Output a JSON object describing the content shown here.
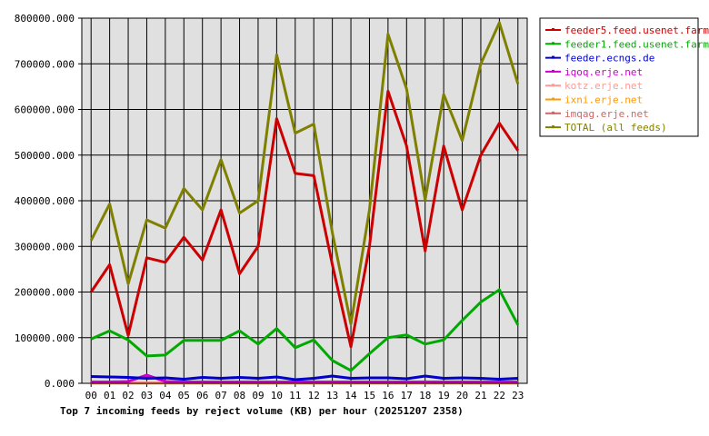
{
  "chart_data": {
    "type": "line",
    "title": "Top 7 incoming feeds by reject volume (KB) per hour (20251207 2358)",
    "xlabel": "",
    "ylabel": "",
    "categories": [
      "00",
      "01",
      "02",
      "03",
      "04",
      "05",
      "06",
      "07",
      "08",
      "09",
      "10",
      "11",
      "12",
      "13",
      "14",
      "15",
      "16",
      "17",
      "18",
      "19",
      "20",
      "21",
      "22",
      "23"
    ],
    "ylim": [
      0,
      800000
    ],
    "yticks": [
      0,
      100000,
      200000,
      300000,
      400000,
      500000,
      600000,
      700000,
      800000
    ],
    "ytick_labels": [
      "0.000",
      "100000.000",
      "200000.000",
      "300000.000",
      "400000.000",
      "500000.000",
      "600000.000",
      "700000.000",
      "800000.000"
    ],
    "grid": true,
    "legend_position": "right",
    "series": [
      {
        "name": "feeder5.feed.usenet.farm",
        "color": "#cc0000",
        "values": [
          200000,
          260000,
          105000,
          275000,
          265000,
          320000,
          270000,
          380000,
          240000,
          300000,
          580000,
          460000,
          455000,
          260000,
          80000,
          300000,
          640000,
          520000,
          290000,
          520000,
          380000,
          500000,
          570000,
          510000
        ]
      },
      {
        "name": "feeder1.feed.usenet.farm",
        "color": "#00aa00",
        "values": [
          97000,
          115000,
          95000,
          60000,
          62000,
          94000,
          94000,
          94000,
          115000,
          86000,
          120000,
          78000,
          95000,
          50000,
          28000,
          65000,
          100000,
          106000,
          86000,
          95000,
          138000,
          178000,
          205000,
          128000
        ]
      },
      {
        "name": "feeder.ecngs.de",
        "color": "#0000cc",
        "values": [
          15000,
          14000,
          13000,
          11000,
          12000,
          9000,
          13000,
          11000,
          13000,
          11000,
          14000,
          8000,
          11000,
          16000,
          11000,
          12000,
          12000,
          10000,
          16000,
          11000,
          12000,
          11000,
          9000,
          11000
        ]
      },
      {
        "name": "iqoq.erje.net",
        "color": "#cc00cc",
        "values": [
          3000,
          3000,
          4000,
          18000,
          4000,
          3000,
          3000,
          3000,
          3000,
          3000,
          3000,
          3000,
          3000,
          3000,
          3000,
          3000,
          3000,
          3000,
          3000,
          3000,
          3000,
          3000,
          3000,
          3000
        ]
      },
      {
        "name": "kotz.erje.net",
        "color": "#ff9999",
        "values": [
          1500,
          1500,
          1500,
          1500,
          1500,
          1500,
          1500,
          1500,
          1500,
          1500,
          1500,
          1500,
          1500,
          1500,
          1500,
          1500,
          1500,
          1500,
          1500,
          1500,
          1500,
          1500,
          1500,
          1500
        ]
      },
      {
        "name": "ixni.erje.net",
        "color": "#ff9900",
        "values": [
          1000,
          1000,
          1000,
          1000,
          1000,
          1000,
          1000,
          1000,
          1000,
          1000,
          1000,
          1000,
          1000,
          1000,
          1000,
          1000,
          1000,
          1000,
          1000,
          1000,
          1000,
          1000,
          1000,
          1000
        ]
      },
      {
        "name": "imqag.erje.net",
        "color": "#cc6666",
        "values": [
          500,
          500,
          500,
          500,
          500,
          500,
          500,
          500,
          500,
          500,
          500,
          500,
          500,
          500,
          500,
          500,
          500,
          500,
          500,
          500,
          500,
          500,
          500,
          500
        ]
      },
      {
        "name": "TOTAL (all feeds)",
        "color": "#808000",
        "values": [
          313000,
          393000,
          218000,
          358000,
          340000,
          427000,
          380000,
          490000,
          373000,
          400000,
          720000,
          548000,
          568000,
          330000,
          130000,
          380000,
          765000,
          645000,
          402000,
          633000,
          532000,
          700000,
          790000,
          656000
        ]
      }
    ]
  }
}
